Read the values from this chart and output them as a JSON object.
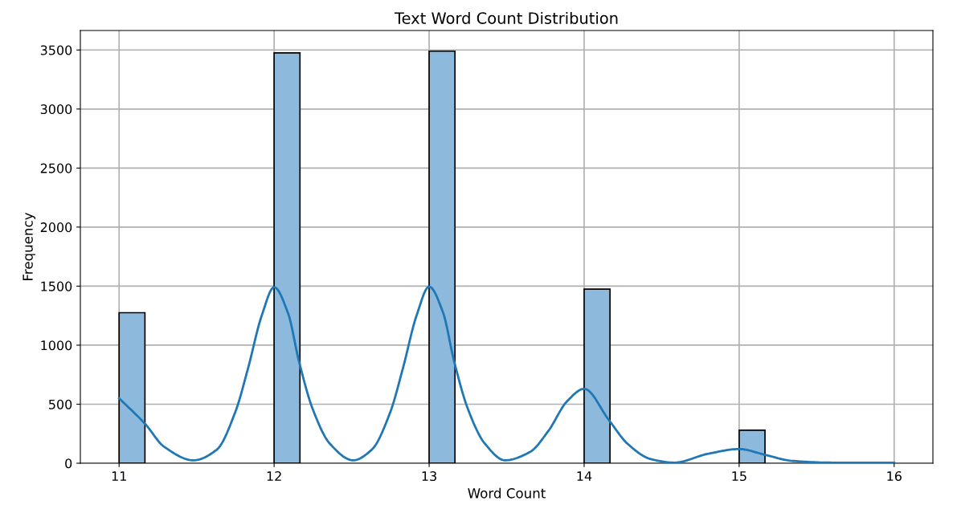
{
  "chart_data": {
    "type": "histogram",
    "title": "Text Word Count Distribution",
    "xlabel": "Word Count",
    "ylabel": "Frequency",
    "bins": [
      11,
      11.1667,
      11.3333,
      11.5,
      11.6667,
      11.8333,
      12,
      12.1667,
      12.3333,
      12.5,
      12.6667,
      12.8333,
      13,
      13.1667,
      13.3333,
      13.5,
      13.6667,
      13.8333,
      14,
      14.1667,
      14.3333,
      14.5,
      14.6667,
      14.8333,
      15,
      15.1667,
      15.3333,
      15.5,
      15.6667,
      15.8333,
      16
    ],
    "values": [
      1275,
      0,
      0,
      0,
      0,
      0,
      3475,
      0,
      0,
      0,
      0,
      0,
      3490,
      0,
      0,
      0,
      0,
      0,
      1475,
      0,
      0,
      0,
      0,
      0,
      280,
      0,
      0,
      0,
      0,
      0
    ],
    "color": "#8db9dc",
    "series": [
      {
        "type": "line",
        "color": "#1f77b4",
        "x": [
          11,
          11.17,
          11.29,
          11.48,
          11.63,
          11.75,
          11.83,
          11.92,
          12,
          12.09,
          12.16,
          12.25,
          12.36,
          12.51,
          12.63,
          12.75,
          12.83,
          12.92,
          13,
          13.09,
          13.16,
          13.25,
          13.36,
          13.49,
          13.65,
          13.77,
          13.89,
          14,
          14.16,
          14.28,
          14.43,
          14.58,
          14.8,
          15,
          15.17,
          15.34,
          15.6,
          16
        ],
        "values": [
          550,
          330,
          140,
          25,
          115,
          435,
          795,
          1250,
          1490,
          1270,
          865,
          455,
          165,
          25,
          115,
          435,
          800,
          1255,
          1495,
          1275,
          870,
          460,
          165,
          25,
          95,
          275,
          525,
          630,
          365,
          165,
          35,
          5,
          80,
          120,
          70,
          20,
          5,
          5
        ]
      }
    ],
    "xlim": [
      10.75,
      16.25
    ],
    "xticks": [
      11,
      12,
      13,
      14,
      15,
      16
    ],
    "ylim": [
      0,
      3665
    ],
    "yticks": [
      0,
      500,
      1000,
      1500,
      2000,
      2500,
      3000,
      3500
    ],
    "grid": true
  }
}
